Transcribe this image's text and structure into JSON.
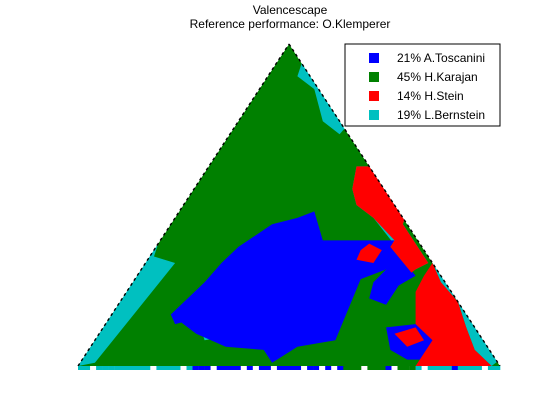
{
  "chart_data": {
    "type": "heatmap",
    "title": "Valencescape",
    "subtitle": "Reference performance: O.Klemperer",
    "legend_position": "top-right",
    "grid": false,
    "series": [
      {
        "name": "21% A.Toscanini",
        "share_percent": 21,
        "color": "#0000ff"
      },
      {
        "name": "45% H.Karajan",
        "share_percent": 45,
        "color": "#008000"
      },
      {
        "name": "14% H.Stein",
        "share_percent": 14,
        "color": "#ff0000"
      },
      {
        "name": "19% L.Bernstein",
        "share_percent": 19,
        "color": "#00c0c0"
      }
    ],
    "regions": [
      {
        "series": 1,
        "polygon": [
          [
            0.04,
            0.01
          ],
          [
            0.46,
            0.01
          ],
          [
            0.46,
            0.08
          ],
          [
            0.34,
            0.08
          ],
          [
            0.24,
            0.3
          ],
          [
            0.23,
            0.32
          ]
        ]
      },
      {
        "series": 1,
        "polygon": [
          [
            0.52,
            0.9
          ],
          [
            0.58,
            0.76
          ],
          [
            0.62,
            0.66
          ],
          [
            0.66,
            0.62
          ],
          [
            0.63,
            0.55
          ],
          [
            0.7,
            0.46
          ],
          [
            0.75,
            0.39
          ],
          [
            0.58,
            0.39
          ],
          [
            0.56,
            0.48
          ]
        ]
      },
      {
        "series": 3,
        "polygon": [
          [
            0.0,
            0.0
          ],
          [
            0.04,
            0.01
          ],
          [
            0.23,
            0.32
          ],
          [
            0.18,
            0.34
          ],
          [
            0.19,
            0.38
          ],
          [
            0.1,
            0.4
          ],
          [
            0.14,
            0.57
          ],
          [
            0.08,
            0.66
          ],
          [
            0.0,
            0.65
          ]
        ]
      },
      {
        "series": 3,
        "polygon": [
          [
            0.58,
            0.98
          ],
          [
            0.6,
            0.92
          ],
          [
            0.63,
            0.88
          ],
          [
            0.6,
            0.86
          ],
          [
            0.62,
            0.82
          ],
          [
            0.66,
            0.78
          ],
          [
            0.62,
            0.72
          ],
          [
            0.58,
            0.76
          ],
          [
            0.56,
            0.86
          ],
          [
            0.52,
            0.9
          ],
          [
            0.53,
            0.94
          ]
        ]
      },
      {
        "series": 3,
        "polygon": [
          [
            0.69,
            0.62
          ],
          [
            0.71,
            0.6
          ],
          [
            0.75,
            0.55
          ],
          [
            0.78,
            0.48
          ],
          [
            0.77,
            0.44
          ],
          [
            0.8,
            0.38
          ],
          [
            0.83,
            0.32
          ],
          [
            0.8,
            0.3
          ],
          [
            0.76,
            0.36
          ],
          [
            0.73,
            0.41
          ],
          [
            0.7,
            0.46
          ],
          [
            0.66,
            0.5
          ],
          [
            0.65,
            0.55
          ],
          [
            0.66,
            0.62
          ]
        ]
      },
      {
        "series": 3,
        "polygon": [
          [
            0.88,
            0.36
          ],
          [
            0.93,
            0.3
          ],
          [
            0.95,
            0.24
          ],
          [
            0.98,
            0.2
          ],
          [
            1.0,
            0.02
          ],
          [
            0.98,
            0.0
          ],
          [
            0.94,
            0.05
          ],
          [
            0.92,
            0.12
          ],
          [
            0.9,
            0.2
          ],
          [
            0.86,
            0.26
          ],
          [
            0.84,
            0.32
          ]
        ]
      },
      {
        "series": 3,
        "polygon": [
          [
            0.3,
            0.08
          ],
          [
            0.39,
            0.1
          ],
          [
            0.41,
            0.14
          ],
          [
            0.38,
            0.17
          ],
          [
            0.33,
            0.16
          ],
          [
            0.29,
            0.12
          ]
        ]
      },
      {
        "series": 0,
        "polygon": [
          [
            0.56,
            0.48
          ],
          [
            0.58,
            0.39
          ],
          [
            0.75,
            0.39
          ],
          [
            0.74,
            0.37
          ],
          [
            0.79,
            0.29
          ],
          [
            0.73,
            0.3
          ],
          [
            0.67,
            0.27
          ],
          [
            0.61,
            0.08
          ],
          [
            0.52,
            0.06
          ],
          [
            0.46,
            0.01
          ],
          [
            0.44,
            0.05
          ],
          [
            0.35,
            0.06
          ],
          [
            0.28,
            0.1
          ],
          [
            0.22,
            0.16
          ],
          [
            0.3,
            0.26
          ],
          [
            0.34,
            0.32
          ],
          [
            0.38,
            0.37
          ],
          [
            0.46,
            0.44
          ],
          [
            0.52,
            0.46
          ]
        ]
      },
      {
        "series": 0,
        "polygon": [
          [
            0.77,
            0.33
          ],
          [
            0.8,
            0.28
          ],
          [
            0.76,
            0.25
          ],
          [
            0.73,
            0.19
          ],
          [
            0.69,
            0.21
          ],
          [
            0.7,
            0.26
          ],
          [
            0.73,
            0.3
          ]
        ]
      },
      {
        "series": 0,
        "polygon": [
          [
            0.25,
            0.18
          ],
          [
            0.3,
            0.17
          ],
          [
            0.33,
            0.16
          ],
          [
            0.3,
            0.13
          ],
          [
            0.26,
            0.14
          ],
          [
            0.23,
            0.13
          ],
          [
            0.22,
            0.16
          ]
        ]
      },
      {
        "series": 0,
        "polygon": [
          [
            0.73,
            0.12
          ],
          [
            0.8,
            0.13
          ],
          [
            0.87,
            0.06
          ],
          [
            0.84,
            0.02
          ],
          [
            0.78,
            0.02
          ],
          [
            0.74,
            0.05
          ]
        ]
      },
      {
        "series": 2,
        "polygon": [
          [
            0.66,
            0.62
          ],
          [
            0.69,
            0.62
          ],
          [
            0.71,
            0.6
          ],
          [
            0.75,
            0.55
          ],
          [
            0.78,
            0.48
          ],
          [
            0.77,
            0.44
          ],
          [
            0.8,
            0.38
          ],
          [
            0.83,
            0.32
          ],
          [
            0.8,
            0.3
          ],
          [
            0.79,
            0.29
          ],
          [
            0.74,
            0.37
          ],
          [
            0.75,
            0.39
          ],
          [
            0.7,
            0.46
          ],
          [
            0.66,
            0.5
          ],
          [
            0.65,
            0.55
          ]
        ]
      },
      {
        "series": 2,
        "polygon": [
          [
            0.84,
            0.32
          ],
          [
            0.86,
            0.26
          ],
          [
            0.9,
            0.2
          ],
          [
            0.92,
            0.12
          ],
          [
            0.94,
            0.05
          ],
          [
            0.98,
            0.0
          ],
          [
            0.8,
            0.0
          ],
          [
            0.84,
            0.08
          ],
          [
            0.8,
            0.13
          ],
          [
            0.8,
            0.23
          ],
          [
            0.82,
            0.28
          ]
        ]
      },
      {
        "series": 2,
        "polygon": [
          [
            0.66,
            0.33
          ],
          [
            0.7,
            0.32
          ],
          [
            0.72,
            0.36
          ],
          [
            0.69,
            0.38
          ],
          [
            0.67,
            0.36
          ]
        ]
      },
      {
        "series": 2,
        "polygon": [
          [
            0.75,
            0.1
          ],
          [
            0.78,
            0.06
          ],
          [
            0.82,
            0.08
          ],
          [
            0.8,
            0.12
          ]
        ]
      }
    ]
  }
}
